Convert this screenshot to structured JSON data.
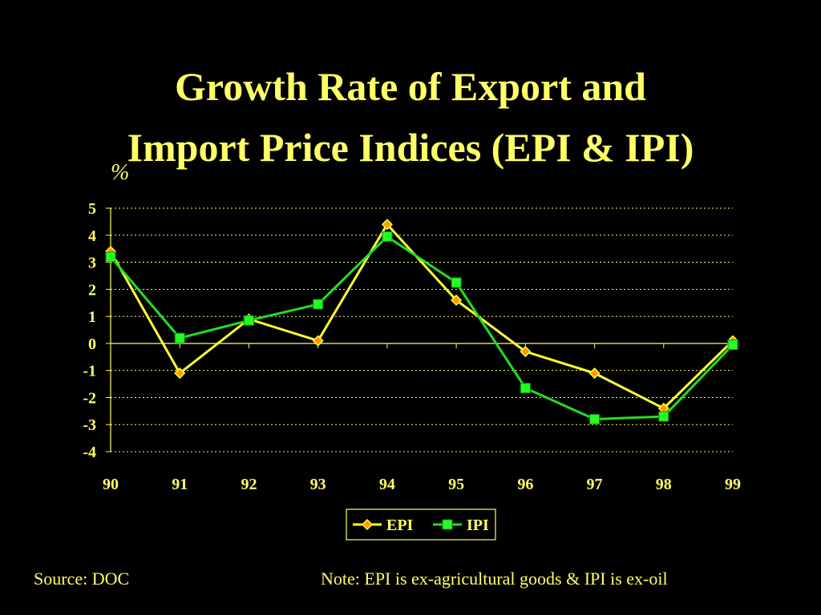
{
  "title_line1": "Growth Rate of Export and",
  "title_line2": "Import Price Indices (EPI & IPI)",
  "unit_label": "%",
  "source": "Source: DOC",
  "note": "Note: EPI is ex-agricultural goods & IPI is ex-oil",
  "colors": {
    "background": "#000000",
    "text": "#ffff66",
    "epi": "#ffff33",
    "epi_marker": "#ff9900",
    "ipi": "#22dd22",
    "ipi_marker": "#22ff22"
  },
  "chart_data": {
    "type": "line",
    "title": "Growth Rate of Export and Import Price Indices (EPI & IPI)",
    "ylabel": "%",
    "xlabel": "",
    "categories": [
      "90",
      "91",
      "92",
      "93",
      "94",
      "95",
      "96",
      "97",
      "98",
      "99"
    ],
    "ylim": [
      -4,
      5
    ],
    "yticks": [
      "5",
      "4",
      "3",
      "2",
      "1",
      "0",
      "-1",
      "-2",
      "-3",
      "-4"
    ],
    "grid": true,
    "legend": "bottom-center",
    "series": [
      {
        "name": "EPI",
        "marker": "diamond",
        "values": [
          3.4,
          -1.1,
          0.9,
          0.1,
          4.4,
          1.6,
          -0.3,
          -1.1,
          -2.4,
          0.1
        ]
      },
      {
        "name": "IPI",
        "marker": "square",
        "values": [
          3.2,
          0.2,
          0.85,
          1.45,
          3.95,
          2.25,
          -1.65,
          -2.8,
          -2.7,
          -0.05
        ]
      }
    ]
  }
}
